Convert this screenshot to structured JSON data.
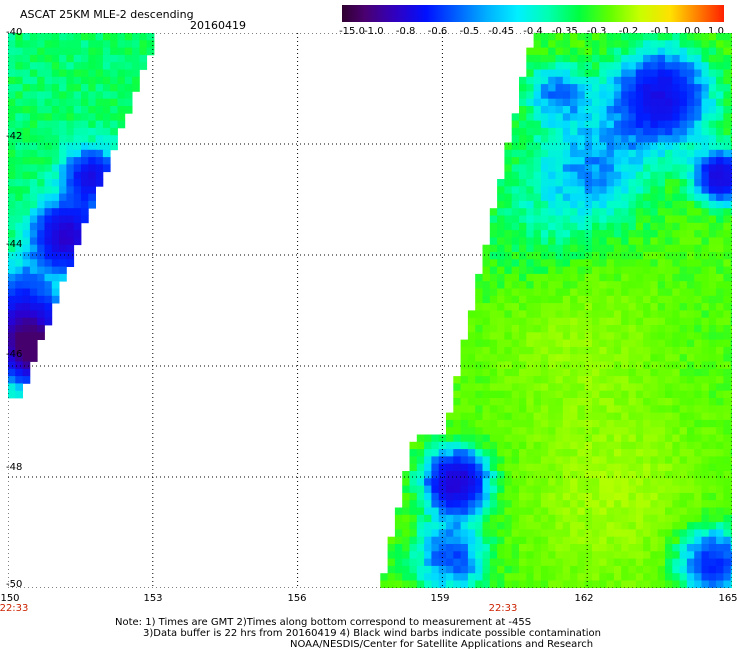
{
  "title": "ASCAT 25KM MLE-2 descending",
  "date": "20160419",
  "colorbar": {
    "ticks": [
      "-15.0",
      "-1.0",
      "-0.8",
      "-0.6",
      "-0.5",
      "-0.45",
      "-0.4",
      "-0.35",
      "-0.3",
      "-0.2",
      "-0.1",
      "0.0",
      "1.0"
    ],
    "colors": [
      "#3a0040",
      "#5a0090",
      "#2a00e0",
      "#0040ff",
      "#0090ff",
      "#00d8ff",
      "#00ffd0",
      "#00ff70",
      "#40ff00",
      "#a0ff00",
      "#ffff00",
      "#ff9000",
      "#ff2000"
    ]
  },
  "axes": {
    "y_ticks": [
      "-40",
      "-42",
      "-44",
      "-46",
      "-48",
      "-50"
    ],
    "x_ticks": [
      "150",
      "153",
      "156",
      "159",
      "162",
      "165"
    ],
    "lat_range": [
      -50,
      -40
    ],
    "lon_range": [
      150,
      165
    ]
  },
  "times": [
    "22:33",
    "22:33"
  ],
  "notes": {
    "line1": "Note: 1) Times are GMT 2)Times along bottom correspond to measurement at -45S",
    "line2": "3)Data buffer is 22 hrs from 20160419 4) Black wind barbs indicate possible contamination",
    "line3": "NOAA/NESDIS/Center for Satellite Applications and Research"
  }
}
